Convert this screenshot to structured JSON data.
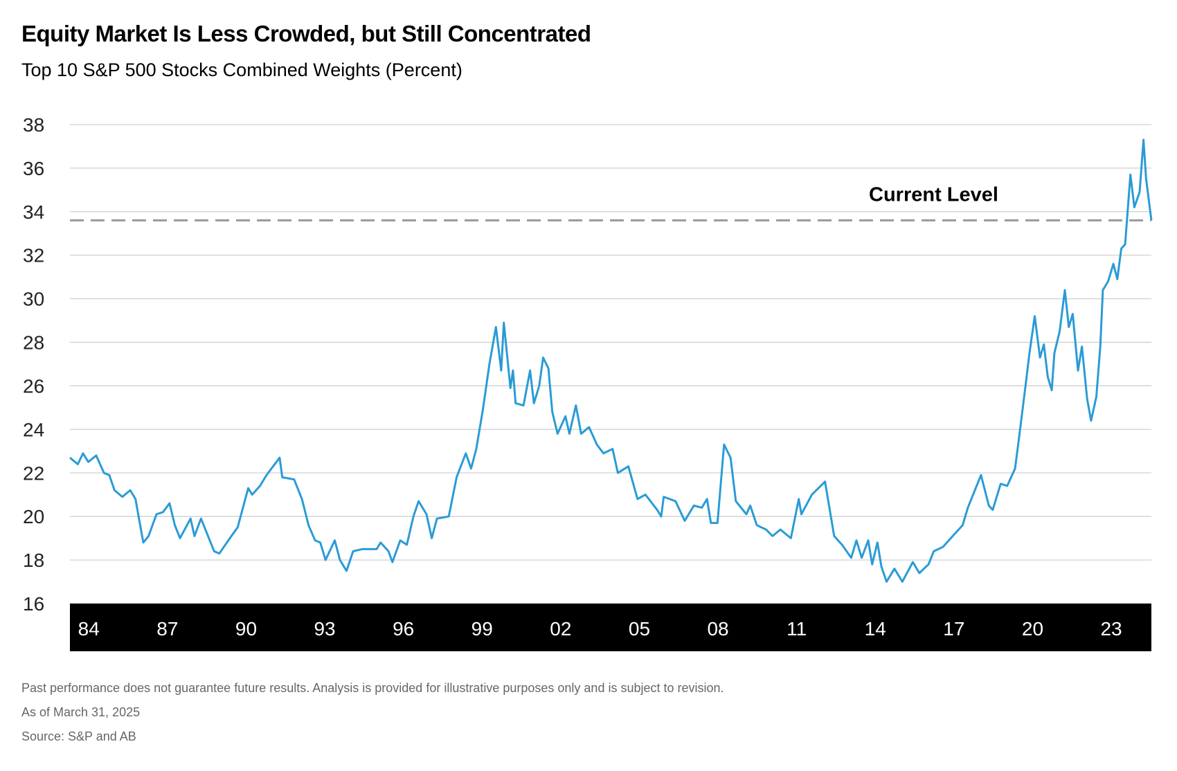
{
  "chart_data": {
    "type": "line",
    "title": "Equity Market Is Less Crowded, but Still Concentrated",
    "subtitle": "Top 10 S&P 500 Stocks Combined Weights (Percent)",
    "xlabel": "",
    "ylabel": "",
    "ylim": [
      16,
      38
    ],
    "xlim": [
      1984.0,
      2025.25
    ],
    "yticks": [
      "16",
      "18",
      "20",
      "22",
      "24",
      "26",
      "28",
      "30",
      "32",
      "34",
      "36",
      "38"
    ],
    "xticks": [
      {
        "label": "84",
        "year": 1984
      },
      {
        "label": "87",
        "year": 1987
      },
      {
        "label": "90",
        "year": 1990
      },
      {
        "label": "93",
        "year": 1993
      },
      {
        "label": "96",
        "year": 1996
      },
      {
        "label": "99",
        "year": 1999
      },
      {
        "label": "02",
        "year": 2002
      },
      {
        "label": "05",
        "year": 2005
      },
      {
        "label": "08",
        "year": 2008
      },
      {
        "label": "11",
        "year": 2011
      },
      {
        "label": "14",
        "year": 2014
      },
      {
        "label": "17",
        "year": 2017
      },
      {
        "label": "20",
        "year": 2020
      },
      {
        "label": "23",
        "year": 2023
      }
    ],
    "grid": true,
    "series": [
      {
        "name": "Top 10 combined weight",
        "color": "#2a9bd6",
        "x": [
          1984.0,
          1984.3,
          1984.5,
          1984.7,
          1985.0,
          1985.3,
          1985.5,
          1985.7,
          1986.0,
          1986.3,
          1986.5,
          1986.65,
          1986.8,
          1987.0,
          1987.3,
          1987.55,
          1987.8,
          1988.0,
          1988.2,
          1988.6,
          1988.75,
          1989.0,
          1989.5,
          1989.7,
          1990.1,
          1990.4,
          1990.8,
          1990.95,
          1991.25,
          1991.5,
          1992.0,
          1992.1,
          1992.55,
          1992.85,
          1993.1,
          1993.35,
          1993.55,
          1993.75,
          1994.1,
          1994.3,
          1994.55,
          1994.8,
          1995.15,
          1995.7,
          1995.85,
          1996.15,
          1996.3,
          1996.6,
          1996.85,
          1997.1,
          1997.3,
          1997.6,
          1997.8,
          1998.0,
          1998.45,
          1998.75,
          1999.1,
          1999.3,
          1999.5,
          1999.75,
          2000.0,
          2000.25,
          2000.45,
          2000.55,
          2000.8,
          2000.9,
          2001.0,
          2001.3,
          2001.55,
          2001.7,
          2001.9,
          2002.05,
          2002.25,
          2002.4,
          2002.6,
          2002.9,
          2003.05,
          2003.3,
          2003.5,
          2003.8,
          2004.1,
          2004.35,
          2004.7,
          2004.9,
          2005.3,
          2005.65,
          2005.95,
          2006.4,
          2006.55,
          2006.65,
          2007.1,
          2007.45,
          2007.8,
          2008.1,
          2008.3,
          2008.45,
          2008.7,
          2008.95,
          2009.2,
          2009.4,
          2009.8,
          2009.95,
          2010.2,
          2010.55,
          2010.8,
          2011.1,
          2011.5,
          2011.8,
          2011.9,
          2012.3,
          2012.8,
          2013.15,
          2013.45,
          2013.8,
          2014.0,
          2014.2,
          2014.45,
          2014.6,
          2014.8,
          2014.95,
          2015.15,
          2015.45,
          2015.75,
          2016.15,
          2016.4,
          2016.75,
          2016.95,
          2017.3,
          2017.75,
          2018.05,
          2018.25,
          2018.45,
          2018.75,
          2019.05,
          2019.2,
          2019.5,
          2019.75,
          2020.05,
          2020.2,
          2020.45,
          2020.6,
          2020.8,
          2021.0,
          2021.15,
          2021.3,
          2021.45,
          2021.55,
          2021.75,
          2021.95,
          2022.1,
          2022.25,
          2022.45,
          2022.6,
          2022.8,
          2022.95,
          2023.15,
          2023.3,
          2023.4,
          2023.6,
          2023.8,
          2023.95,
          2024.1,
          2024.25,
          2024.45,
          2024.6,
          2024.8,
          2024.95,
          2025.05,
          2025.25
        ],
        "values": [
          22.7,
          22.4,
          22.9,
          22.5,
          22.8,
          22.0,
          21.9,
          21.2,
          20.9,
          21.2,
          20.8,
          19.8,
          18.8,
          19.1,
          20.1,
          20.2,
          20.6,
          19.6,
          19.0,
          19.9,
          19.1,
          19.9,
          18.4,
          18.3,
          19.0,
          19.5,
          21.3,
          21.0,
          21.4,
          21.9,
          22.7,
          21.8,
          21.7,
          20.8,
          19.6,
          18.9,
          18.8,
          18.0,
          18.9,
          18.0,
          17.5,
          18.4,
          18.5,
          18.5,
          18.8,
          18.4,
          17.9,
          18.9,
          18.7,
          20.0,
          20.7,
          20.1,
          19.0,
          19.9,
          20.0,
          21.8,
          22.9,
          22.2,
          23.1,
          24.9,
          27.0,
          28.7,
          26.7,
          28.9,
          25.9,
          26.7,
          25.2,
          25.1,
          26.7,
          25.2,
          26.0,
          27.3,
          26.8,
          24.8,
          23.8,
          24.6,
          23.8,
          25.1,
          23.8,
          24.1,
          23.3,
          22.9,
          23.1,
          22.0,
          22.3,
          20.8,
          21.0,
          20.3,
          20.0,
          20.9,
          20.7,
          19.8,
          20.5,
          20.4,
          20.8,
          19.7,
          19.7,
          23.3,
          22.7,
          20.7,
          20.1,
          20.5,
          19.6,
          19.4,
          19.1,
          19.4,
          19.0,
          20.8,
          20.1,
          21.0,
          21.6,
          19.1,
          18.7,
          18.1,
          18.9,
          18.1,
          18.9,
          17.8,
          18.8,
          17.7,
          17.0,
          17.6,
          17.0,
          17.9,
          17.4,
          17.8,
          18.4,
          18.6,
          19.2,
          19.6,
          20.4,
          21.0,
          21.9,
          20.5,
          20.3,
          21.5,
          21.4,
          22.2,
          23.6,
          26.0,
          27.5,
          29.2,
          27.3,
          27.9,
          26.4,
          25.8,
          27.5,
          28.5,
          30.4,
          28.7,
          29.3,
          26.7,
          27.8,
          25.4,
          24.4,
          25.5,
          27.8,
          30.4,
          30.8,
          31.6,
          30.9,
          32.3,
          32.5,
          35.7,
          34.2,
          34.9,
          37.3,
          35.5,
          33.6
        ]
      }
    ],
    "reference_line": {
      "label": "Current Level",
      "value": 33.6,
      "color": "#999999",
      "style": "dashed"
    },
    "legend": "none"
  },
  "footnotes": {
    "disclaimer": "Past performance does not guarantee future results. Analysis is provided for illustrative purposes only and is subject to revision.",
    "as_of": "As of March 31, 2025",
    "source": "Source: S&P and AB"
  }
}
